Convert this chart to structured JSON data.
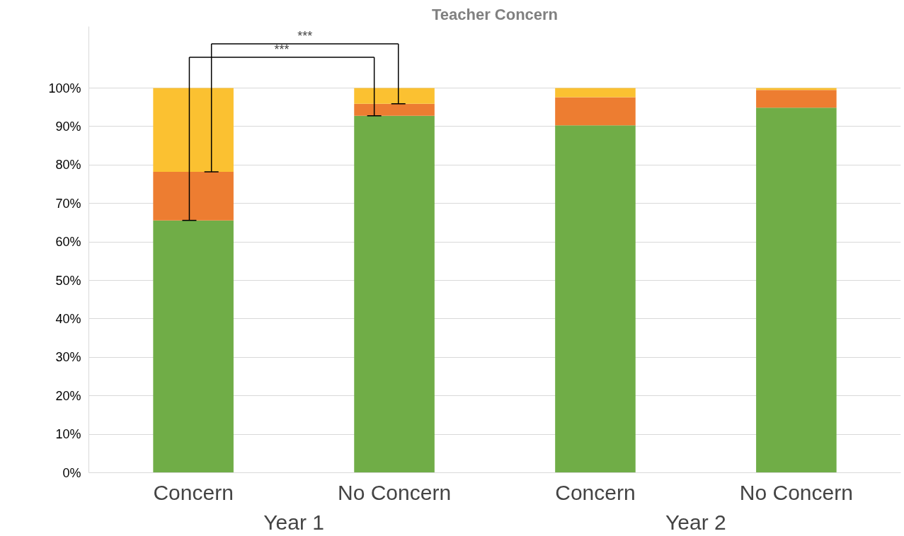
{
  "chart_data": {
    "type": "bar",
    "stacked": true,
    "title": "Teacher Concern",
    "categories": [
      "Concern",
      "No Concern",
      "Concern",
      "No Concern"
    ],
    "series": [
      {
        "color": "#70ad47",
        "values": [
          65.6,
          92.8,
          90.3,
          94.9
        ]
      },
      {
        "color": "#ed7d31",
        "values": [
          12.6,
          3.1,
          7.3,
          4.6
        ]
      },
      {
        "color": "#fbc131",
        "values": [
          21.8,
          4.1,
          2.4,
          0.5
        ]
      }
    ],
    "ylim": [
      0,
      116
    ],
    "yticks": [
      {
        "value": 0,
        "label": "0%"
      },
      {
        "value": 10,
        "label": "10%"
      },
      {
        "value": 20,
        "label": "20%"
      },
      {
        "value": 30,
        "label": "30%"
      },
      {
        "value": 40,
        "label": "40%"
      },
      {
        "value": 50,
        "label": "50%"
      },
      {
        "value": 60,
        "label": "60%"
      },
      {
        "value": 70,
        "label": "70%"
      },
      {
        "value": 80,
        "label": "80%"
      },
      {
        "value": 90,
        "label": "90%"
      },
      {
        "value": 100,
        "label": "100%"
      }
    ],
    "grid": "y",
    "annotations": [
      "***",
      "***",
      "Year 1",
      "Year 2"
    ]
  }
}
